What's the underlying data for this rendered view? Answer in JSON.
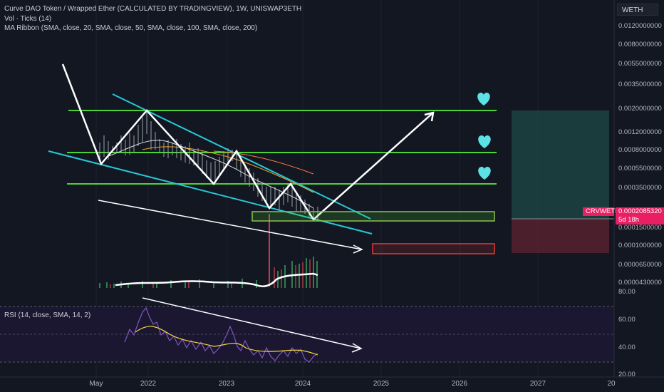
{
  "legend": {
    "title": "Curve DAO Token / Wrapped Ether (CALCULATED BY TRADINGVIEW), 1W, UNISWAP3ETH",
    "vol": "Vol · Ticks (14)",
    "ma": "MA Ribbon (SMA, close, 20, SMA, close, 50, SMA, close, 100, SMA, close, 200)"
  },
  "symbol_box": "WETH",
  "price_axis": [
    "0.0120000000",
    "0.0080000000",
    "0.0055000000",
    "0.0035000000",
    "0.0020000000",
    "0.0012000000",
    "0.0008000000",
    "0.0005500000",
    "0.0003500000",
    "0.0001500000",
    "0.0001000000",
    "0.0000650000",
    "0.0000430000"
  ],
  "price_tag": {
    "symbol": "CRVWETH",
    "price": "0.0002085320",
    "countdown": "5d 18h"
  },
  "rsi": {
    "legend": "RSI (14, close, SMA, 14, 2)",
    "axis": [
      "80.00",
      "60.00",
      "40.00",
      "20.00"
    ]
  },
  "time_axis": [
    "May",
    "2022",
    "2023",
    "2024",
    "2025",
    "2026",
    "2027",
    "20"
  ],
  "colors": {
    "background": "#131722",
    "green_lines": "#4cd137",
    "cyan_lines": "#27c9d6",
    "arrows": "#ffffff",
    "hearts": "#5ce1e6",
    "tag": "#e91e63",
    "red_box": "#e53935",
    "rsi_line": "#7e57c2",
    "rsi_signal": "#f5d742"
  },
  "icons": [
    "heart-icon"
  ]
}
